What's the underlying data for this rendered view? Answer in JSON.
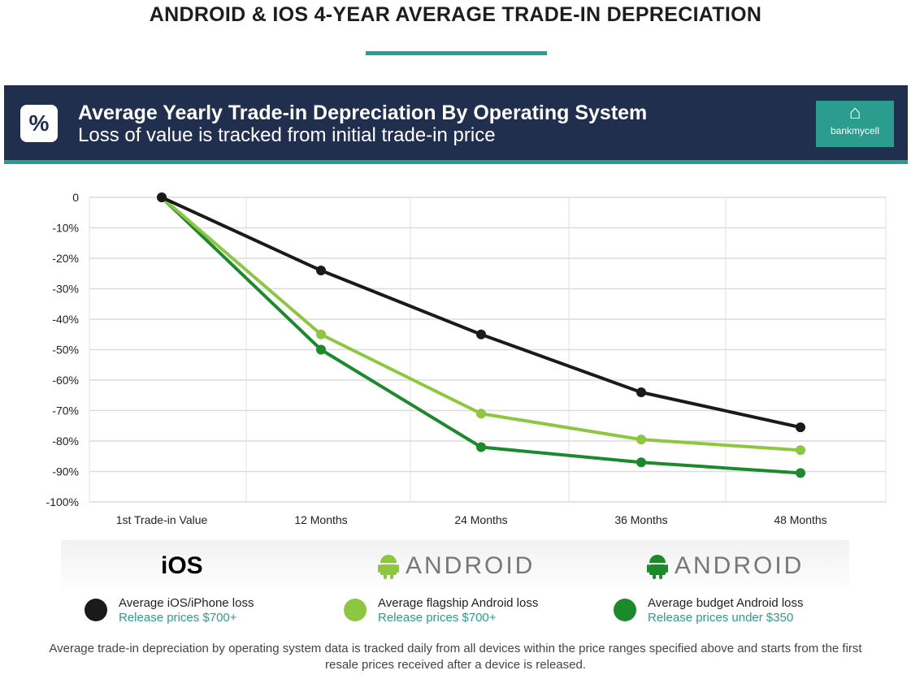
{
  "header": {
    "title": "ANDROID & IOS 4-YEAR AVERAGE TRADE-IN DEPRECIATION"
  },
  "banner": {
    "icon": "percent-icon",
    "title": "Average Yearly Trade-in Depreciation By Operating System",
    "subtitle": "Loss of value is tracked from initial trade-in price",
    "logo_text": "bankmycell"
  },
  "chart_data": {
    "type": "line",
    "categories": [
      "1st Trade-in Value",
      "12 Months",
      "24 Months",
      "36 Months",
      "48 Months"
    ],
    "y_ticks": [
      "0",
      "-10%",
      "-20%",
      "-30%",
      "-40%",
      "-50%",
      "-60%",
      "-70%",
      "-80%",
      "-90%",
      "-100%"
    ],
    "ylim": [
      -100,
      0
    ],
    "grid": true,
    "legend_placement": "bottom",
    "series": [
      {
        "name": "Average iOS/iPhone loss",
        "color": "#1a1a1a",
        "values": [
          0,
          -24,
          -45,
          -64,
          -75.5
        ]
      },
      {
        "name": "Average flagship Android loss",
        "color": "#8dc63f",
        "values": [
          0,
          -45,
          -71,
          -79.5,
          -83
        ]
      },
      {
        "name": "Average budget Android loss",
        "color": "#1a8a2a",
        "values": [
          0,
          -50,
          -82,
          -87,
          -90.5
        ]
      }
    ]
  },
  "legend": {
    "groups": [
      {
        "brand": "iOS",
        "label": "Average iOS/iPhone loss",
        "sub": "Release prices $700+",
        "color": "#1a1a1a"
      },
      {
        "brand": "ANDROID",
        "label": "Average flagship Android loss",
        "sub": "Release prices $700+",
        "color": "#8dc63f"
      },
      {
        "brand": "ANDROID",
        "label": "Average budget Android loss",
        "sub": "Release prices under $350",
        "color": "#1a8a2a"
      }
    ]
  },
  "footer": {
    "note": "Average trade-in depreciation by operating system data is tracked daily from all devices within the price ranges specified above and starts from the first resale prices received after a device is released."
  }
}
